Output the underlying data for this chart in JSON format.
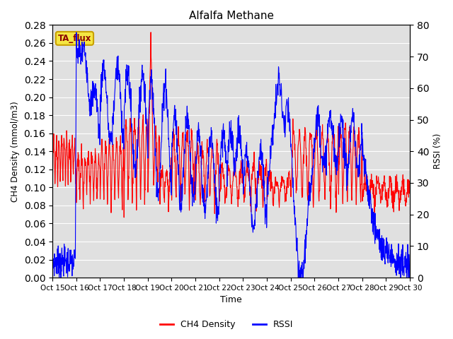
{
  "title": "Alfalfa Methane",
  "xlabel": "Time",
  "ylabel_left": "CH4 Density (mmol/m3)",
  "ylabel_right": "RSSI (%)",
  "ylim_left": [
    0.0,
    0.28
  ],
  "ylim_right": [
    0,
    80
  ],
  "xlim": [
    0,
    360
  ],
  "background_color": "#e0e0e0",
  "grid_color": "#ffffff",
  "ta_flux_label": "TA_flux",
  "legend_entries": [
    "CH4 Density",
    "RSSI"
  ],
  "line_colors": [
    "red",
    "blue"
  ],
  "yticks_left": [
    0.0,
    0.02,
    0.04,
    0.06,
    0.08,
    0.1,
    0.12,
    0.14,
    0.16,
    0.18,
    0.2,
    0.22,
    0.24,
    0.26,
    0.28
  ],
  "yticks_right": [
    0,
    10,
    20,
    30,
    40,
    50,
    60,
    70,
    80
  ],
  "xtick_labels": [
    "Oct 15",
    "Oct 16",
    "Oct 17",
    "Oct 18",
    "Oct 19",
    "Oct 20",
    "Oct 21",
    "Oct 22",
    "Oct 23",
    "Oct 24",
    "Oct 25",
    "Oct 26",
    "Oct 27",
    "Oct 28",
    "Oct 29",
    "Oct 30"
  ],
  "xtick_positions": [
    0,
    24,
    48,
    72,
    96,
    120,
    144,
    168,
    192,
    216,
    240,
    264,
    288,
    312,
    336,
    360
  ]
}
